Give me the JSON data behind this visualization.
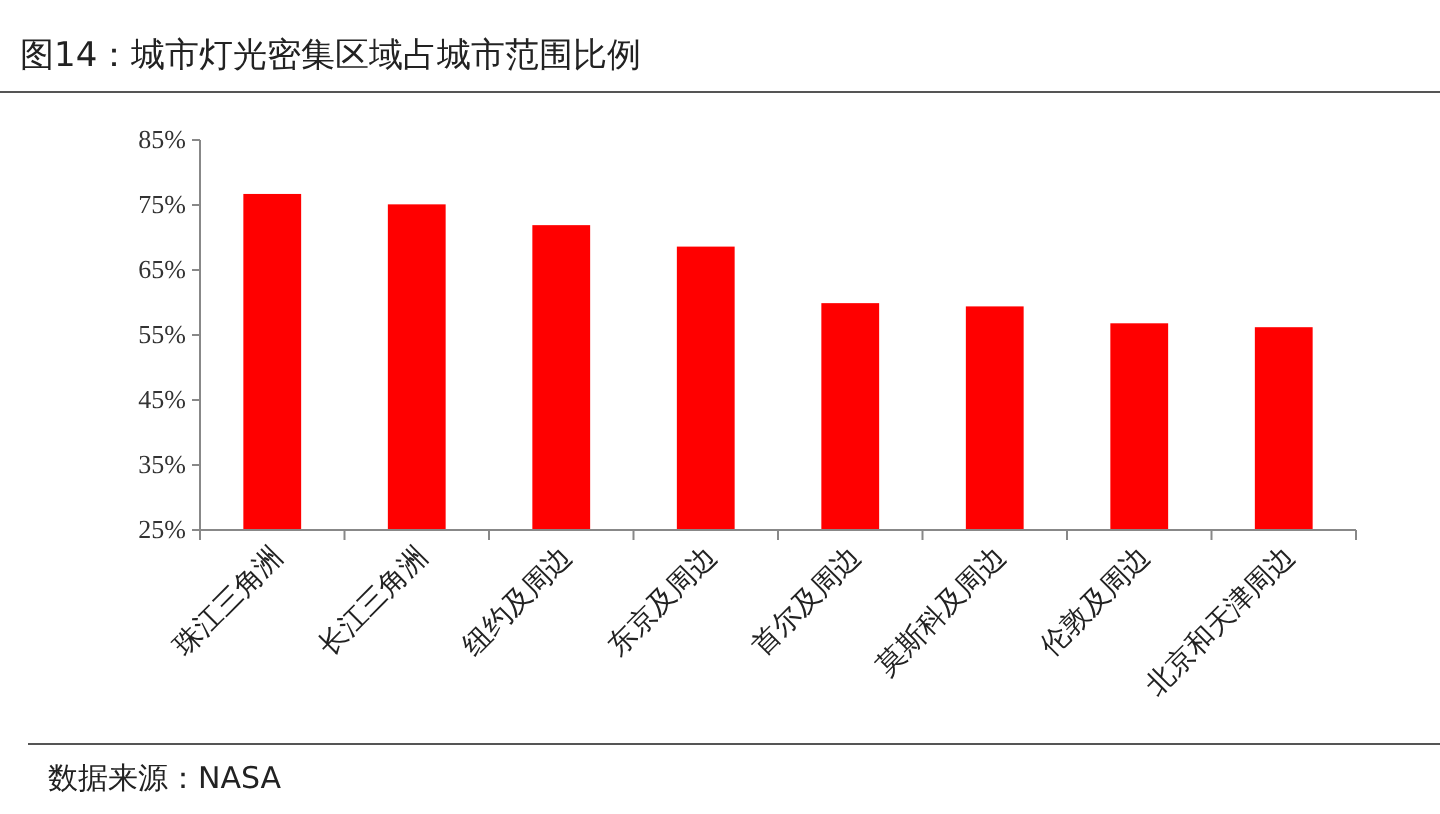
{
  "chart_data": {
    "type": "bar",
    "title": "图14：城市灯光密集区域占城市范围比例",
    "categories": [
      "珠江三角洲",
      "长江三角洲",
      "纽约及周边",
      "东京及周边",
      "首尔及周边",
      "莫斯科及周边",
      "伦敦及周边",
      "北京和天津周边"
    ],
    "values": [
      76.7,
      75.1,
      71.9,
      68.6,
      59.9,
      59.4,
      56.8,
      56.2
    ],
    "color": "#ff0000",
    "ylim": [
      25,
      85
    ],
    "yticks": [
      {
        "value": 25,
        "label": "25%"
      },
      {
        "value": 35,
        "label": "35%"
      },
      {
        "value": 45,
        "label": "45%"
      },
      {
        "value": 55,
        "label": "55%"
      },
      {
        "value": 65,
        "label": "65%"
      },
      {
        "value": 75,
        "label": "75%"
      },
      {
        "value": 85,
        "label": "85%"
      }
    ],
    "annotations": [
      "数据来源：NASA"
    ]
  }
}
